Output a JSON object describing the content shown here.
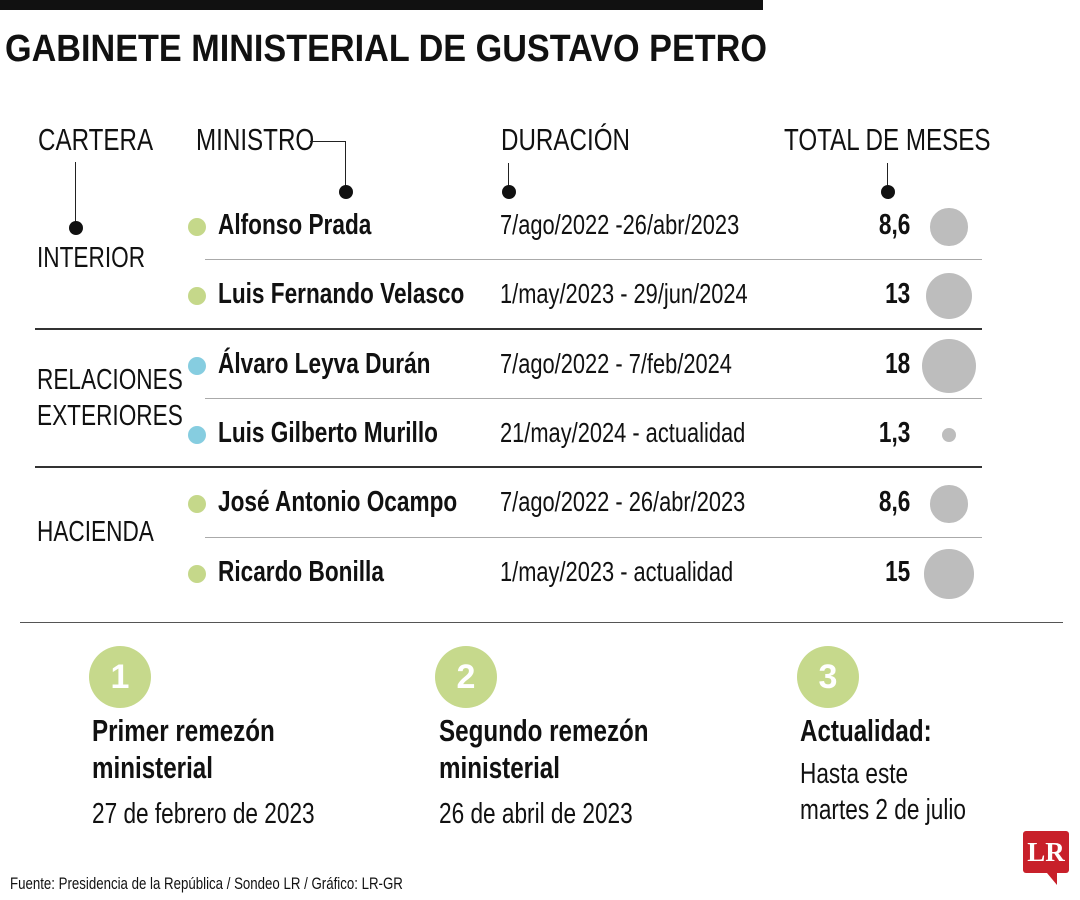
{
  "title": "GABINETE MINISTERIAL DE GUSTAVO PETRO",
  "headers": {
    "cartera": "CARTERA",
    "ministro": "MINISTRO",
    "duracion": "DURACIÓN",
    "total": "TOTAL DE MESES"
  },
  "colors": {
    "interior": "#c5d88a",
    "relaciones": "#86cde0",
    "hacienda": "#c5d88a",
    "bubble": "#bdbdbd",
    "brand": "#c8202a"
  },
  "carteras": [
    "INTERIOR",
    "RELACIONES",
    "EXTERIORES",
    "HACIENDA"
  ],
  "chart_data": {
    "type": "table",
    "title": "GABINETE MINISTERIAL DE GUSTAVO PETRO",
    "columns": [
      "CARTERA",
      "MINISTRO",
      "DURACIÓN",
      "TOTAL DE MESES"
    ],
    "rows": [
      {
        "cartera": "INTERIOR",
        "ministro": "Alfonso Prada",
        "duracion": "7/ago/2022 -26/abr/2023",
        "total_label": "8,6",
        "total": 8.6
      },
      {
        "cartera": "INTERIOR",
        "ministro": "Luis Fernando Velasco",
        "duracion": "1/may/2023 - 29/jun/2024",
        "total_label": "13",
        "total": 13
      },
      {
        "cartera": "RELACIONES EXTERIORES",
        "ministro": "Álvaro Leyva Durán",
        "duracion": "7/ago/2022 - 7/feb/2024",
        "total_label": "18",
        "total": 18
      },
      {
        "cartera": "RELACIONES EXTERIORES",
        "ministro": "Luis Gilberto Murillo",
        "duracion": "21/may/2024 - actualidad",
        "total_label": "1,3",
        "total": 1.3
      },
      {
        "cartera": "HACIENDA",
        "ministro": "José Antonio Ocampo",
        "duracion": "7/ago/2022 - 26/abr/2023",
        "total_label": "8,6",
        "total": 8.6
      },
      {
        "cartera": "HACIENDA",
        "ministro": "Ricardo Bonilla",
        "duracion": "1/may/2023 - actualidad",
        "total_label": "15",
        "total": 15
      }
    ]
  },
  "milestones": [
    {
      "num": "1",
      "title1": "Primer remezón",
      "title2": "ministerial",
      "date1": "27 de febrero de 2023",
      "date2": ""
    },
    {
      "num": "2",
      "title1": "Segundo remezón",
      "title2": "ministerial",
      "date1": "26 de abril de 2023",
      "date2": ""
    },
    {
      "num": "3",
      "title1": "Actualidad:",
      "title2": "",
      "date1": "Hasta este",
      "date2": "martes 2 de julio"
    }
  ],
  "source": "Fuente: Presidencia de la República / Sondeo LR / Gráfico: LR-GR",
  "logo": "LR"
}
